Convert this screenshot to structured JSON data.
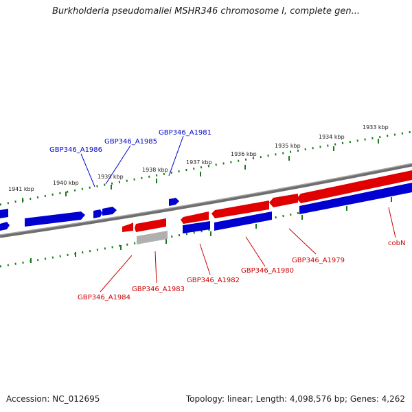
{
  "title": "Burkholderia pseudomallei MSHR346 chromosome I, complete gen...",
  "accession": "Accession: NC_012695",
  "topology": "Topology: linear; Length: 4,098,576 bp; Genes: 4,262",
  "colors": {
    "forward": "#e00000",
    "reverse": "#0000d0",
    "pseudo": "#b0b0b0",
    "backbone": "#808080",
    "ticks": "#1a7a1a",
    "label_forward": "#cc0000",
    "label_reverse": "#0000cc"
  },
  "scale": {
    "ticks": [
      "1941 kbp",
      "1940 kbp",
      "1939 kbp",
      "1938 kbp",
      "1937 kbp",
      "1936 kbp",
      "1935 kbp",
      "1934 kbp",
      "1933 kbp"
    ]
  },
  "genes": {
    "reverse": [
      "GBP346_A1986",
      "GBP346_A1985",
      "GBP346_A1981"
    ],
    "forward": [
      "GBP346_A1984",
      "GBP346_A1983",
      "GBP346_A1982",
      "GBP346_A1980",
      "GBP346_A1979",
      "cobN"
    ]
  }
}
